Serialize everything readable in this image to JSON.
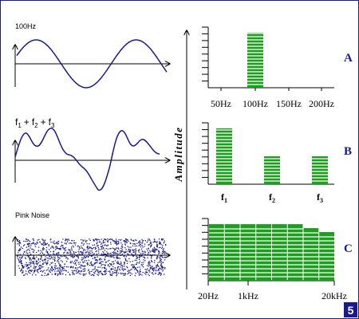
{
  "waveforms": {
    "sine": {
      "label": "100Hz"
    },
    "composite": {
      "label_main": "f",
      "sub1": "1",
      "plus": "+",
      "sub2": "2",
      "sub3": "3"
    },
    "noise": {
      "label": "Pink Noise"
    }
  },
  "spectrum": {
    "axis_label": "Amplitude",
    "bar_color": "#1e9e1e",
    "letter_color": "#1a1a8c"
  },
  "chart_data": [
    {
      "type": "bar",
      "panel": "A",
      "categories": [
        "50Hz",
        "100Hz",
        "150Hz",
        "200Hz"
      ],
      "values": [
        0,
        10,
        0,
        0
      ],
      "ylim": [
        0,
        11
      ]
    },
    {
      "type": "bar",
      "panel": "B",
      "categories": [
        "f1",
        "f2",
        "f3"
      ],
      "category_labels": [
        {
          "main": "f",
          "sub": "1"
        },
        {
          "main": "f",
          "sub": "2"
        },
        {
          "main": "f",
          "sub": "3"
        }
      ],
      "values": [
        10,
        5,
        5
      ],
      "ylim": [
        0,
        11
      ]
    },
    {
      "type": "area",
      "panel": "C",
      "x_ticks": [
        "20Hz",
        "1kHz",
        "20kHz"
      ],
      "values": [
        10,
        10,
        10,
        10,
        10,
        10,
        9.3,
        8.6
      ],
      "ylim": [
        0,
        11
      ]
    }
  ],
  "page_number": "5"
}
